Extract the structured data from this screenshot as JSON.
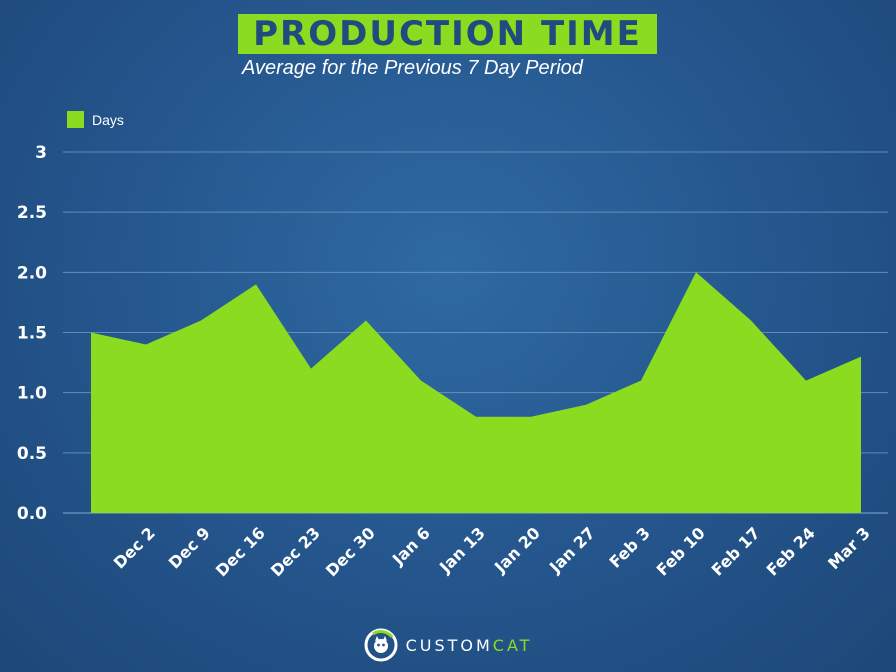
{
  "title": "PRODUCTION TIME",
  "subtitle": "Average for the Previous 7 Day Period",
  "brand": {
    "name_main": "CUSTOM",
    "name_accent": "CAT",
    "logo_icon": "customcat-logo-icon"
  },
  "colors": {
    "background": "#24558c",
    "area": "#8bdc21",
    "title_text": "#1f4c7e",
    "grid": "#6f9cc8"
  },
  "chart_data": {
    "type": "area",
    "title": "PRODUCTION TIME",
    "subtitle": "Average for the Previous 7 Day Period",
    "categories": [
      "",
      "Dec 2",
      "Dec 9",
      "Dec 16",
      "Dec 23",
      "Dec 30",
      "Jan 6",
      "Jan 13",
      "Jan 20",
      "Jan 27",
      "Feb 3",
      "Feb 10",
      "Feb 17",
      "Feb 24",
      "Mar 3"
    ],
    "x_tick_labels": [
      "Dec 2",
      "Dec 9",
      "Dec 16",
      "Dec 23",
      "Dec 30",
      "Jan 6",
      "Jan 13",
      "Jan 20",
      "Jan 27",
      "Feb 3",
      "Feb 10",
      "Feb 17",
      "Feb 24",
      "Mar 3"
    ],
    "series": [
      {
        "name": "Days",
        "values": [
          1.5,
          1.4,
          1.6,
          1.9,
          1.2,
          1.6,
          1.1,
          0.8,
          0.8,
          0.9,
          1.1,
          2.0,
          1.6,
          1.1,
          1.3
        ]
      }
    ],
    "y_ticks": [
      {
        "value": 0,
        "label": "0.0"
      },
      {
        "value": 0.5,
        "label": "0.5"
      },
      {
        "value": 1.0,
        "label": "1.0"
      },
      {
        "value": 1.5,
        "label": "1.5"
      },
      {
        "value": 2.0,
        "label": "2.0"
      },
      {
        "value": 2.5,
        "label": "2.5"
      },
      {
        "value": 3,
        "label": "3"
      }
    ],
    "ylim": [
      0,
      3
    ],
    "xlabel": "",
    "ylabel": "",
    "legend": {
      "labels": [
        "Days"
      ],
      "position": "top-left"
    },
    "grid": true
  }
}
